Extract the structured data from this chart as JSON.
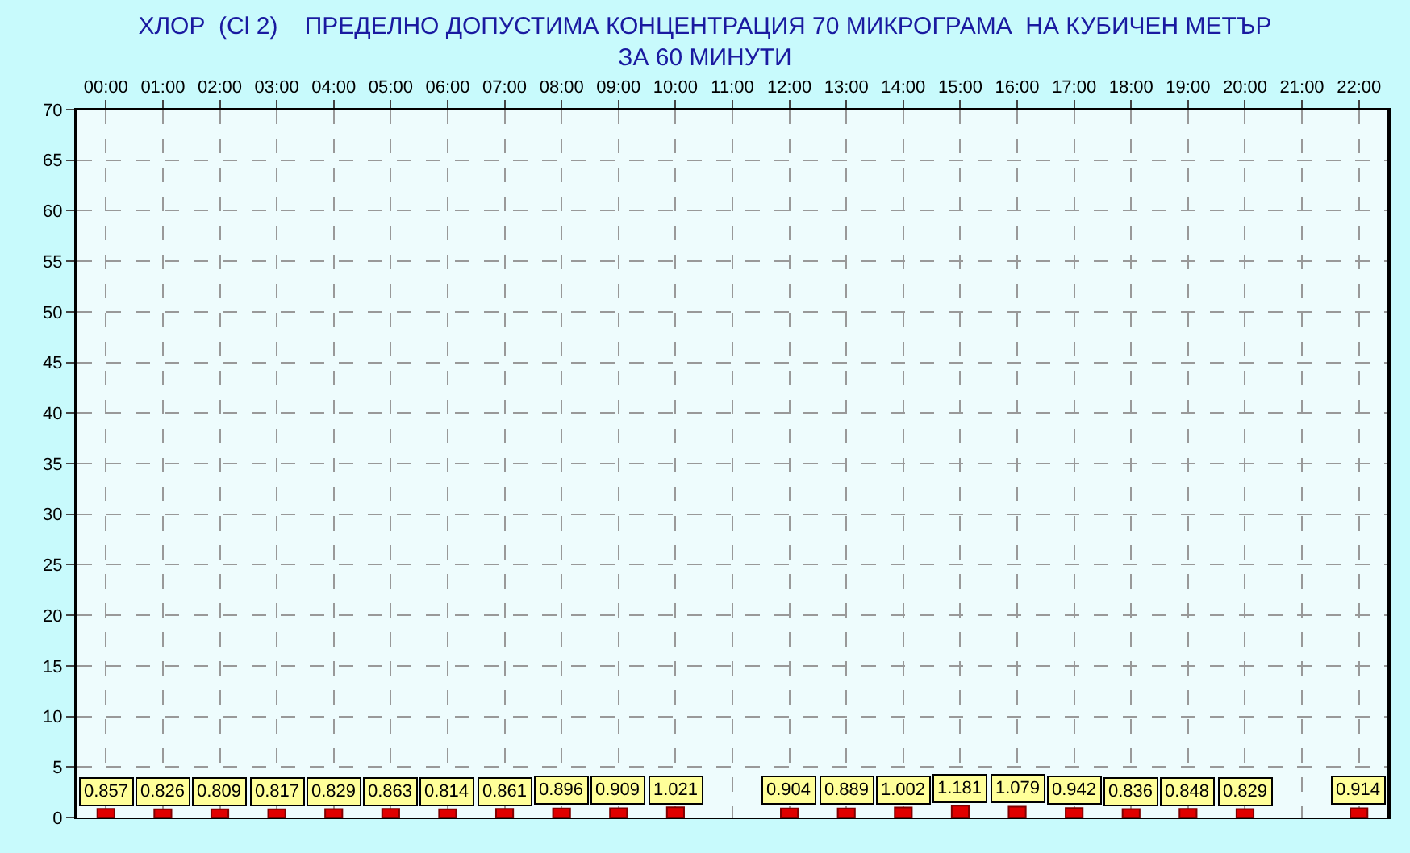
{
  "chart_data": {
    "type": "bar",
    "title": "ХЛОР  (Cl 2)    ПРЕДЕЛНО ДОПУСТИМА КОНЦЕНТРАЦИЯ 70 МИКРОГРАМА  НА КУБИЧЕН МЕТЪР\nЗА 60 МИНУТИ",
    "categories": [
      "00:00",
      "01:00",
      "02:00",
      "03:00",
      "04:00",
      "05:00",
      "06:00",
      "07:00",
      "08:00",
      "09:00",
      "10:00",
      "11:00",
      "12:00",
      "13:00",
      "14:00",
      "15:00",
      "16:00",
      "17:00",
      "18:00",
      "19:00",
      "20:00",
      "21:00",
      "22:00"
    ],
    "values": [
      0.857,
      0.826,
      0.809,
      0.817,
      0.829,
      0.863,
      0.814,
      0.861,
      0.896,
      0.909,
      1.021,
      null,
      0.904,
      0.889,
      1.002,
      1.181,
      1.079,
      0.942,
      0.836,
      0.848,
      0.829,
      null,
      0.914
    ],
    "color": "#e00000",
    "ylim": [
      0,
      70
    ],
    "yticks": [
      0,
      5,
      10,
      15,
      20,
      25,
      30,
      35,
      40,
      45,
      50,
      55,
      60,
      65,
      70
    ],
    "grid": true,
    "data_labels": true
  }
}
